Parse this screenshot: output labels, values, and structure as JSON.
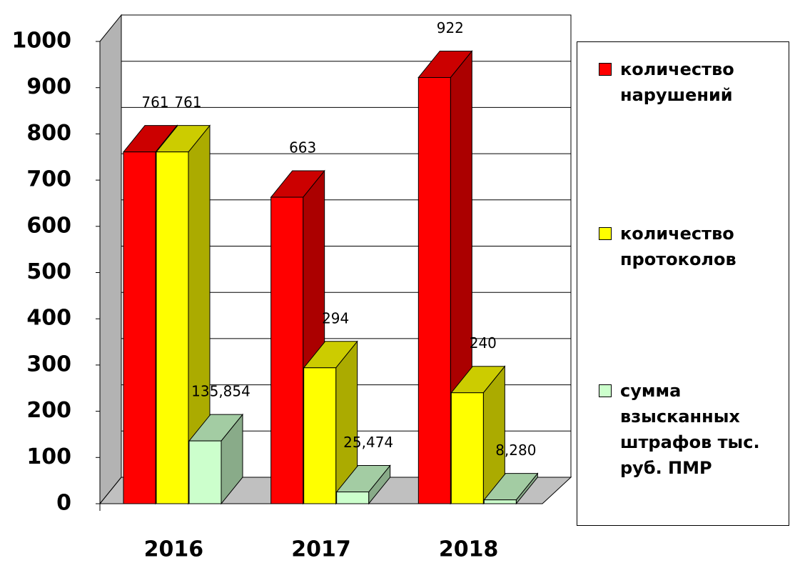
{
  "chart_data": {
    "type": "bar3d",
    "categories": [
      "2016",
      "2017",
      "2018"
    ],
    "series": [
      {
        "name": "количество нарушений",
        "color": "#ff0000",
        "values": [
          761,
          663,
          922
        ]
      },
      {
        "name": "количество протоколов",
        "color": "#ffff00",
        "values": [
          761,
          294,
          240
        ]
      },
      {
        "name": "сумма взысканных штрафов тыс. руб. ПМР",
        "color": "#ccffcc",
        "values": [
          135.854,
          25.474,
          8.28
        ],
        "value_labels": [
          "135,854",
          "25,474",
          "8,280"
        ]
      }
    ],
    "ylim": [
      0,
      1000
    ],
    "yticks": [
      0,
      100,
      200,
      300,
      400,
      500,
      600,
      700,
      800,
      900,
      1000
    ],
    "grid": true,
    "legend": "right"
  }
}
